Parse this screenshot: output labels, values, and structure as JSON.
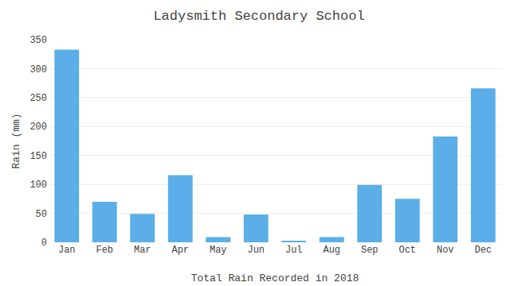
{
  "chart_data": {
    "type": "bar",
    "title": "Ladysmith Secondary School",
    "xlabel": "Total Rain Recorded in 2018",
    "ylabel": "Rain (mm)",
    "categories": [
      "Jan",
      "Feb",
      "Mar",
      "Apr",
      "May",
      "Jun",
      "Jul",
      "Aug",
      "Sep",
      "Oct",
      "Nov",
      "Dec"
    ],
    "values": [
      333,
      70,
      49,
      116,
      9,
      48,
      2,
      9,
      99,
      75,
      183,
      266
    ],
    "color": "#5BAEE8",
    "ylim": [
      0,
      350
    ],
    "yticks": [
      0,
      50,
      100,
      150,
      200,
      250,
      300,
      350
    ],
    "grid": true
  }
}
